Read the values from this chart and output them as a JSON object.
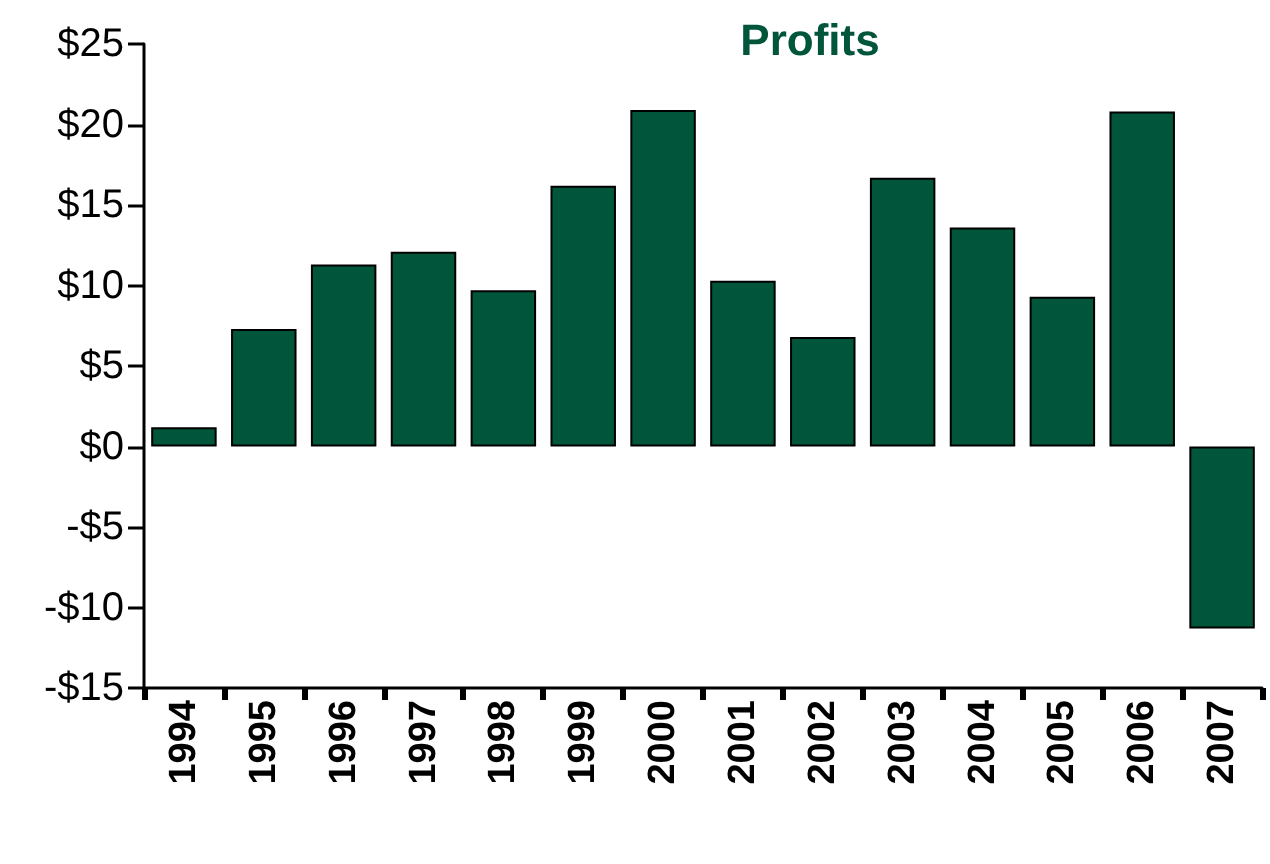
{
  "chart_data": {
    "type": "bar",
    "title": "Profits",
    "categories": [
      "1994",
      "1995",
      "1996",
      "1997",
      "1998",
      "1999",
      "2000",
      "2001",
      "2002",
      "2003",
      "2004",
      "2005",
      "2006",
      "2007"
    ],
    "values": [
      1.2,
      7.3,
      11.3,
      12.1,
      9.7,
      16.2,
      20.9,
      10.3,
      6.8,
      16.7,
      13.6,
      9.3,
      20.8,
      -11.3
    ],
    "color": "#00553b",
    "ylim": [
      -15,
      25
    ],
    "yticks": [
      {
        "value": -15,
        "label": "-$15"
      },
      {
        "value": -10,
        "label": "-$10"
      },
      {
        "value": -5,
        "label": "-$5"
      },
      {
        "value": 0,
        "label": "$0"
      },
      {
        "value": 5,
        "label": "$5"
      },
      {
        "value": 10,
        "label": "$10"
      },
      {
        "value": 15,
        "label": "$15"
      },
      {
        "value": 20,
        "label": "$20"
      },
      {
        "value": 25,
        "label": "$25"
      }
    ],
    "grid": false
  }
}
